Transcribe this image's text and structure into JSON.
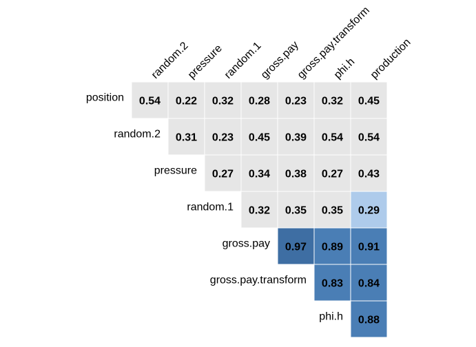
{
  "chart_data": {
    "type": "heatmap",
    "title": "",
    "columns": [
      "random.2",
      "pressure",
      "random.1",
      "gross.pay",
      "gross.pay.transform",
      "phi.h",
      "production"
    ],
    "rows": [
      "position",
      "random.2",
      "pressure",
      "random.1",
      "gross.pay",
      "gross.pay.transform",
      "phi.h"
    ],
    "matrix": [
      [
        0.54,
        0.22,
        0.32,
        0.28,
        0.23,
        0.32,
        0.45
      ],
      [
        null,
        0.31,
        0.23,
        0.45,
        0.39,
        0.54,
        0.54
      ],
      [
        null,
        null,
        0.27,
        0.34,
        0.38,
        0.27,
        0.43
      ],
      [
        null,
        null,
        null,
        0.32,
        0.35,
        0.35,
        0.29
      ],
      [
        null,
        null,
        null,
        null,
        0.97,
        0.89,
        0.91
      ],
      [
        null,
        null,
        null,
        null,
        null,
        0.83,
        0.84
      ],
      [
        null,
        null,
        null,
        null,
        null,
        null,
        0.88
      ]
    ],
    "value_labels": [
      [
        "0.54",
        "0.22",
        "0.32",
        "0.28",
        "0.23",
        "0.32",
        "0.45"
      ],
      [
        "",
        "0.31",
        "0.23",
        "0.45",
        "0.39",
        "0.54",
        "0.54"
      ],
      [
        "",
        "",
        "0.27",
        "0.34",
        "0.38",
        "0.27",
        "0.43"
      ],
      [
        "",
        "",
        "",
        "0.32",
        "0.35",
        "0.35",
        "0.29"
      ],
      [
        "",
        "",
        "",
        "",
        "0.97",
        "0.89",
        "0.91"
      ],
      [
        "",
        "",
        "",
        "",
        "",
        "0.83",
        "0.84"
      ],
      [
        "",
        "",
        "",
        "",
        "",
        "",
        "0.88"
      ]
    ],
    "highlight_threshold": 0.8,
    "highlighted_cells": [
      [
        3,
        6
      ]
    ],
    "colors": {
      "default": "#e6e6e6",
      "strong": "#4a7eb5",
      "strong_dark": "#3e6ea3",
      "highlight": "#aecbeb",
      "grid": "#ffffff",
      "text": "#000000"
    },
    "grid": true,
    "legend": "none"
  }
}
